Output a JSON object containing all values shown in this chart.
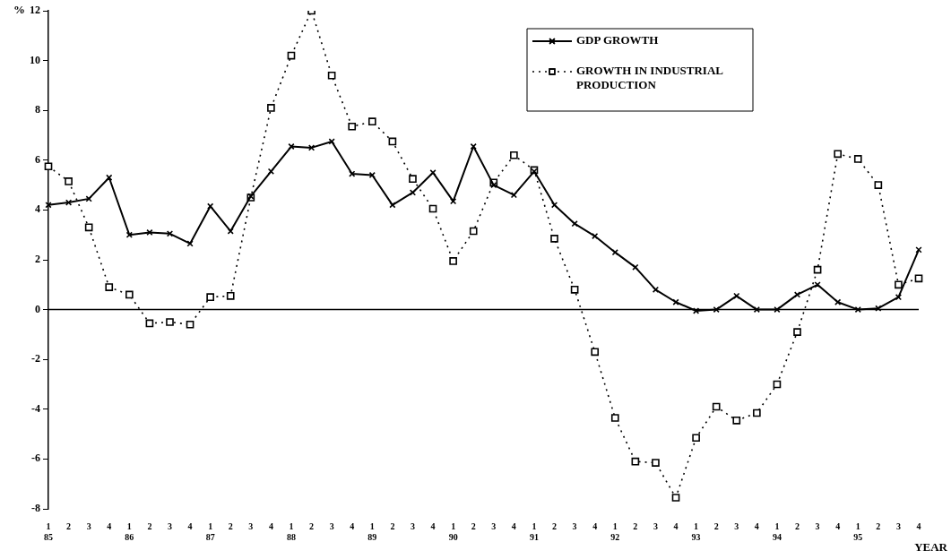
{
  "chart_data": {
    "type": "line",
    "ylabel": "%",
    "xlabel": "YEAR",
    "categories": [
      "1\n85",
      "2",
      "3",
      "4",
      "1\n86",
      "2",
      "3",
      "4",
      "1\n87",
      "2",
      "3",
      "4",
      "1\n88",
      "2",
      "3",
      "4",
      "1\n89",
      "2",
      "3",
      "4",
      "1\n90",
      "2",
      "3",
      "4",
      "1\n91",
      "2",
      "3",
      "4",
      "1\n92",
      "2",
      "3",
      "4",
      "1\n93",
      "2",
      "3",
      "4",
      "1\n94",
      "2",
      "3",
      "4",
      "1\n95",
      "2",
      "3",
      "4"
    ],
    "series": [
      {
        "name": "GDP GROWTH",
        "color": "#000000",
        "marker": "cross",
        "line_style": "solid",
        "values": [
          4.2,
          4.3,
          4.45,
          5.3,
          3.0,
          3.1,
          3.05,
          2.65,
          4.15,
          3.15,
          4.55,
          5.55,
          6.55,
          6.5,
          6.75,
          5.45,
          5.4,
          4.2,
          4.7,
          5.5,
          4.35,
          6.55,
          5.0,
          4.6,
          5.55,
          4.2,
          3.45,
          2.95,
          2.3,
          1.7,
          0.8,
          0.3,
          -0.05,
          0.0,
          0.55,
          0.0,
          0.0,
          0.6,
          1.0,
          0.3,
          0.0,
          0.05,
          0.5,
          2.4
        ]
      },
      {
        "name": "GROWTH IN INDUSTRIAL PRODUCTION",
        "color": "#000000",
        "marker": "square",
        "line_style": "dotted",
        "values": [
          5.75,
          5.15,
          3.3,
          0.9,
          0.6,
          -0.55,
          -0.5,
          -0.6,
          0.5,
          0.55,
          4.5,
          8.1,
          10.2,
          12.0,
          9.4,
          7.35,
          7.55,
          6.75,
          5.25,
          4.05,
          1.95,
          3.15,
          5.1,
          6.2,
          5.6,
          2.85,
          0.8,
          -1.7,
          -4.35,
          -6.1,
          -6.15,
          -7.55,
          -5.15,
          -3.9,
          -4.45,
          -4.15,
          -3.0,
          -0.9,
          1.6,
          6.25,
          6.05,
          5.0,
          1.0,
          1.25
        ]
      }
    ],
    "ylim": [
      -8,
      12
    ],
    "yticks": [
      -8,
      -6,
      -4,
      -2,
      0,
      2,
      4,
      6,
      8,
      10,
      12
    ],
    "ref_lines": [
      {
        "axis": "y",
        "value": 0,
        "color": "#000000",
        "line_style": "solid"
      }
    ],
    "grid": false,
    "legend": "top right"
  }
}
